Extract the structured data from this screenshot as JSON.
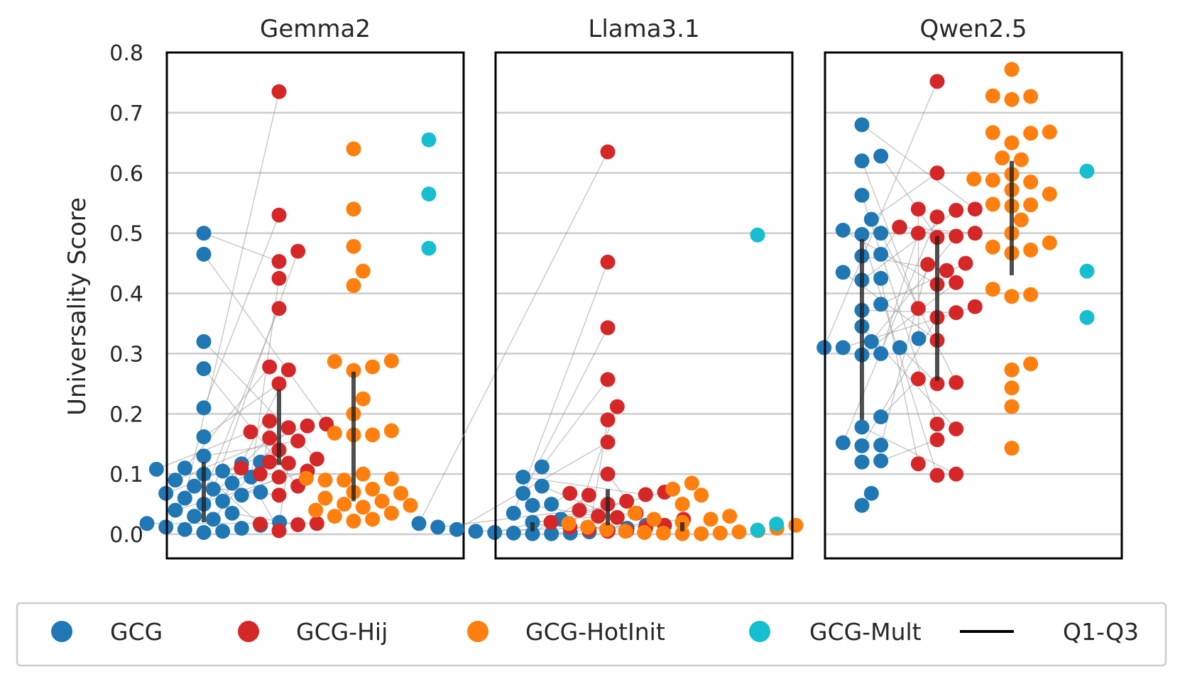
{
  "chart_data": {
    "type": "scatter",
    "subtype": "swarm-strip with quartile bars and paired connecting lines",
    "ylabel": "Universality Score",
    "ylim": [
      -0.04,
      0.8
    ],
    "yticks": [
      "0.0",
      "0.1",
      "0.2",
      "0.3",
      "0.4",
      "0.5",
      "0.6",
      "0.7",
      "0.8"
    ],
    "grid": true,
    "legend_position": "bottom",
    "legend": [
      {
        "label": "GCG",
        "kind": "dot",
        "color": "#1f77b4"
      },
      {
        "label": "GCG-Hij",
        "kind": "dot",
        "color": "#d62728"
      },
      {
        "label": "GCG-HotInit",
        "kind": "dot",
        "color": "#ff7f0e"
      },
      {
        "label": "GCG-Mult",
        "kind": "dot",
        "color": "#17becf"
      },
      {
        "label": "Q1-Q3",
        "kind": "line",
        "color": "#000000"
      }
    ],
    "panels": [
      {
        "title": "Gemma2",
        "series": [
          {
            "name": "GCG",
            "values": [
              0.5,
              0.465,
              0.32,
              0.275,
              0.21,
              0.162,
              0.13,
              0.12,
              0.117,
              0.11,
              0.108,
              0.105,
              0.1,
              0.095,
              0.09,
              0.085,
              0.08,
              0.075,
              0.07,
              0.068,
              0.065,
              0.06,
              0.055,
              0.05,
              0.04,
              0.035,
              0.03,
              0.025,
              0.02,
              0.018,
              0.015,
              0.012,
              0.01,
              0.008,
              0.005,
              0.003
            ],
            "q1": 0.02,
            "q3": 0.12
          },
          {
            "name": "GCG-Hij",
            "values": [
              0.735,
              0.53,
              0.47,
              0.453,
              0.425,
              0.375,
              0.278,
              0.273,
              0.25,
              0.188,
              0.183,
              0.18,
              0.177,
              0.17,
              0.16,
              0.155,
              0.14,
              0.125,
              0.12,
              0.118,
              0.11,
              0.105,
              0.1,
              0.095,
              0.08,
              0.065,
              0.018,
              0.017,
              0.016,
              0.006
            ],
            "q1": 0.115,
            "q3": 0.24
          },
          {
            "name": "GCG-HotInit",
            "values": [
              0.64,
              0.54,
              0.478,
              0.437,
              0.413,
              0.288,
              0.287,
              0.278,
              0.272,
              0.225,
              0.2,
              0.172,
              0.168,
              0.165,
              0.165,
              0.1,
              0.093,
              0.092,
              0.09,
              0.09,
              0.075,
              0.07,
              0.068,
              0.06,
              0.055,
              0.05,
              0.048,
              0.045,
              0.04,
              0.035,
              0.03,
              0.025,
              0.022
            ],
            "q1": 0.055,
            "q3": 0.27
          },
          {
            "name": "GCG-Mult",
            "values": [
              0.655,
              0.565,
              0.475
            ]
          }
        ]
      },
      {
        "title": "Llama3.1",
        "series": [
          {
            "name": "GCG",
            "values": [
              0.112,
              0.095,
              0.08,
              0.068,
              0.05,
              0.048,
              0.035,
              0.025,
              0.02,
              0.018,
              0.015,
              0.012,
              0.01,
              0.008,
              0.006,
              0.005,
              0.004,
              0.003,
              0.002,
              0.002,
              0.001,
              0.001
            ],
            "q1": 0.005,
            "q3": 0.02
          },
          {
            "name": "GCG-Hij",
            "values": [
              0.635,
              0.452,
              0.343,
              0.257,
              0.212,
              0.19,
              0.153,
              0.1,
              0.07,
              0.068,
              0.066,
              0.065,
              0.055,
              0.05,
              0.04,
              0.035,
              0.03,
              0.028,
              0.025,
              0.02,
              0.015,
              0.012,
              0.01,
              0.008,
              0.006,
              0.005
            ],
            "q1": 0.015,
            "q3": 0.075
          },
          {
            "name": "GCG-HotInit",
            "values": [
              0.085,
              0.075,
              0.065,
              0.05,
              0.035,
              0.03,
              0.025,
              0.025,
              0.02,
              0.018,
              0.015,
              0.012,
              0.01,
              0.008,
              0.006,
              0.005,
              0.004,
              0.003,
              0.002,
              0.002,
              0.001,
              0.001
            ],
            "q1": 0.005,
            "q3": 0.02
          },
          {
            "name": "GCG-Mult",
            "values": [
              0.497,
              0.017,
              0.007
            ]
          }
        ]
      },
      {
        "title": "Qwen2.5",
        "series": [
          {
            "name": "GCG",
            "values": [
              0.68,
              0.628,
              0.62,
              0.563,
              0.523,
              0.51,
              0.505,
              0.5,
              0.498,
              0.465,
              0.462,
              0.435,
              0.425,
              0.422,
              0.382,
              0.372,
              0.345,
              0.325,
              0.32,
              0.31,
              0.31,
              0.31,
              0.3,
              0.298,
              0.195,
              0.178,
              0.152,
              0.148,
              0.147,
              0.122,
              0.12,
              0.068,
              0.048
            ],
            "q1": 0.19,
            "q3": 0.49
          },
          {
            "name": "GCG-Hij",
            "values": [
              0.752,
              0.6,
              0.54,
              0.54,
              0.538,
              0.527,
              0.51,
              0.5,
              0.5,
              0.495,
              0.493,
              0.45,
              0.448,
              0.438,
              0.418,
              0.415,
              0.378,
              0.375,
              0.368,
              0.36,
              0.322,
              0.258,
              0.252,
              0.25,
              0.183,
              0.175,
              0.157,
              0.117,
              0.1,
              0.098
            ],
            "q1": 0.255,
            "q3": 0.495
          },
          {
            "name": "GCG-HotInit",
            "values": [
              0.772,
              0.728,
              0.727,
              0.722,
              0.668,
              0.667,
              0.666,
              0.65,
              0.625,
              0.622,
              0.598,
              0.59,
              0.588,
              0.585,
              0.572,
              0.565,
              0.548,
              0.547,
              0.545,
              0.522,
              0.5,
              0.484,
              0.477,
              0.472,
              0.467,
              0.407,
              0.398,
              0.395,
              0.283,
              0.273,
              0.243,
              0.212,
              0.143
            ],
            "q1": 0.43,
            "q3": 0.62
          },
          {
            "name": "GCG-Mult",
            "values": [
              0.603,
              0.437,
              0.36
            ]
          }
        ]
      }
    ]
  }
}
